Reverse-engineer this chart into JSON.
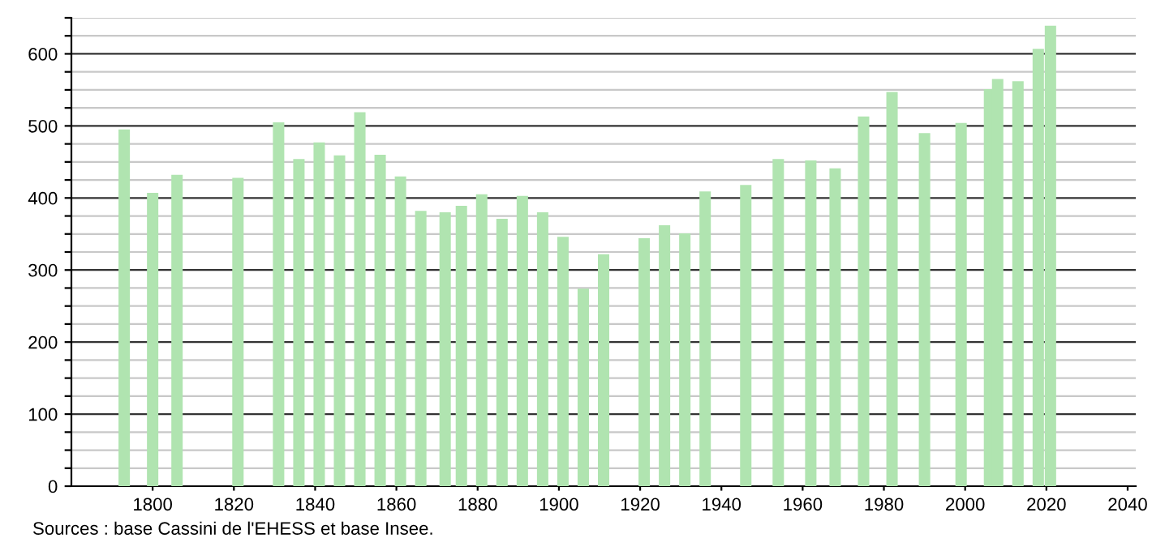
{
  "chart_data": {
    "type": "bar",
    "x": [
      1793,
      1800,
      1806,
      1821,
      1831,
      1836,
      1841,
      1846,
      1851,
      1856,
      1861,
      1866,
      1872,
      1876,
      1881,
      1886,
      1891,
      1896,
      1901,
      1906,
      1911,
      1921,
      1926,
      1931,
      1936,
      1946,
      1954,
      1962,
      1968,
      1975,
      1982,
      1990,
      1999,
      2006,
      2008,
      2013,
      2018,
      2021
    ],
    "values": [
      495,
      407,
      432,
      428,
      505,
      454,
      477,
      459,
      519,
      460,
      430,
      382,
      380,
      389,
      405,
      371,
      403,
      380,
      346,
      274,
      322,
      344,
      362,
      351,
      409,
      418,
      454,
      452,
      441,
      513,
      547,
      490,
      504,
      551,
      565,
      562,
      607,
      639
    ],
    "color": "#b0e4b0",
    "xlim": [
      1780,
      2042
    ],
    "xticks": [
      1800,
      1820,
      1840,
      1860,
      1880,
      1900,
      1920,
      1940,
      1960,
      1980,
      2000,
      2020,
      2040
    ],
    "ylim": [
      0,
      650
    ],
    "yticks": [
      0,
      {
        "value": 25,
        "label": null
      },
      {
        "value": 50,
        "label": null
      },
      {
        "value": 75,
        "label": null
      },
      100,
      {
        "value": 125,
        "label": null
      },
      {
        "value": 150,
        "label": null
      },
      {
        "value": 175,
        "label": null
      },
      200,
      {
        "value": 225,
        "label": null
      },
      {
        "value": 250,
        "label": null
      },
      {
        "value": 275,
        "label": null
      },
      300,
      {
        "value": 325,
        "label": null
      },
      {
        "value": 350,
        "label": null
      },
      {
        "value": 375,
        "label": null
      },
      400,
      {
        "value": 425,
        "label": null
      },
      {
        "value": 450,
        "label": null
      },
      {
        "value": 475,
        "label": null
      },
      500,
      {
        "value": 525,
        "label": null
      },
      {
        "value": 550,
        "label": null
      },
      {
        "value": 575,
        "label": null
      },
      600,
      {
        "value": 625,
        "label": null
      },
      {
        "value": 650,
        "label": null
      }
    ],
    "grid": "y",
    "annotations": [
      "Sources : base Cassini de l'EHESS et base Insee."
    ]
  }
}
